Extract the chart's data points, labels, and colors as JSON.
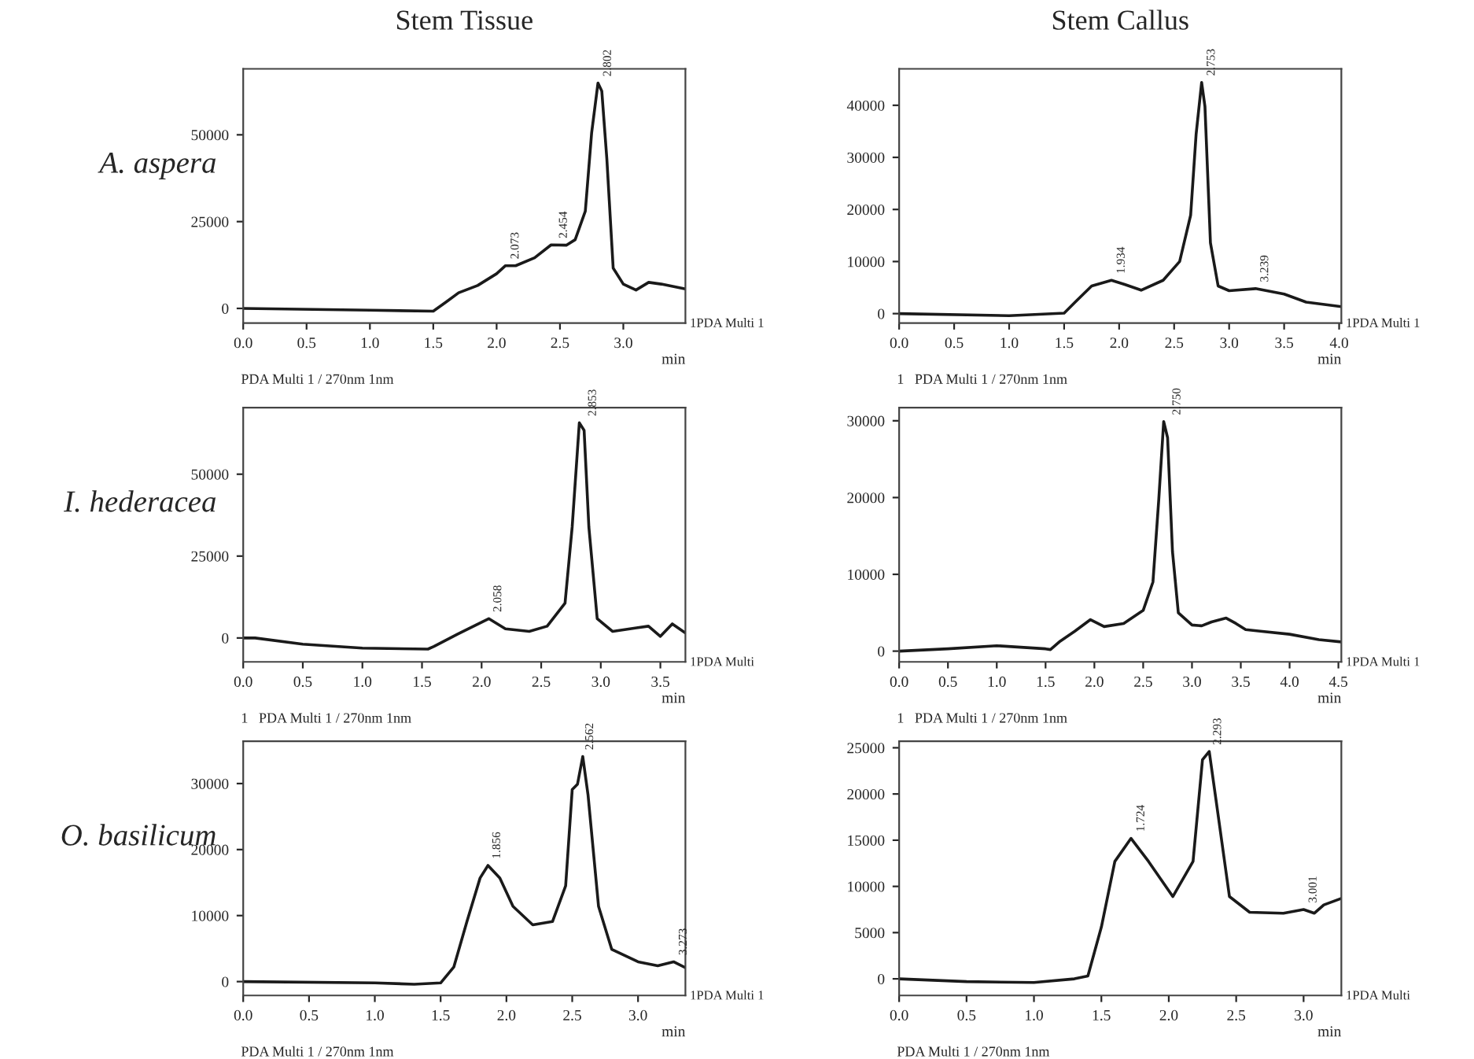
{
  "chart_data": [
    {
      "type": "line",
      "title": "Stem Tissue",
      "ylabel": "A. aspera",
      "xlabel": "min",
      "xlim": [
        0,
        3.49
      ],
      "ylim": [
        -4200,
        69000
      ],
      "xticks": [
        {
          "value": 0,
          "label": "0.0"
        },
        0.5,
        {
          "value": 1,
          "label": "1.0"
        },
        1.5,
        {
          "value": 2,
          "label": "2.0"
        },
        2.5,
        {
          "value": 3,
          "label": "3.0"
        }
      ],
      "yticks": [
        0,
        25000,
        50000
      ],
      "grid": false,
      "legend": false,
      "marker": "none",
      "line_style": "solid",
      "x": [
        0,
        1.0,
        1.5,
        1.6,
        1.7,
        1.85,
        2.0,
        2.07,
        2.15,
        2.3,
        2.43,
        2.55,
        2.62,
        2.7,
        2.75,
        2.8,
        2.83,
        2.87,
        2.92,
        3.0,
        3.1,
        3.2,
        3.3,
        3.49
      ],
      "series": [
        {
          "color": "#1a1a1a",
          "values": [
            0,
            -500,
            -800,
            1800,
            4500,
            6600,
            10000,
            12300,
            12300,
            14600,
            18300,
            18200,
            19800,
            28000,
            50600,
            64900,
            62600,
            43000,
            11600,
            7000,
            5300,
            7500,
            7000,
            5600
          ]
        }
      ],
      "annotations": [
        "1PDA Multi 1",
        "PDA Multi 1 / 270nm 1nm",
        {
          "text": "2.073",
          "x": 2.073,
          "y": 12300
        },
        {
          "text": "2.454",
          "x": 2.454,
          "y": 18300
        },
        {
          "text": "2.802",
          "x": 2.802,
          "y": 64900
        }
      ]
    },
    {
      "type": "line",
      "title": "Stem Callus",
      "xlabel": "min",
      "xlim": [
        0,
        4.02
      ],
      "ylim": [
        -1800,
        47000
      ],
      "xticks": [
        {
          "value": 0,
          "label": "0.0"
        },
        0.5,
        {
          "value": 1,
          "label": "1.0"
        },
        1.5,
        {
          "value": 2,
          "label": "2.0"
        },
        2.5,
        {
          "value": 3,
          "label": "3.0"
        },
        3.5,
        {
          "value": 4,
          "label": "4.0"
        }
      ],
      "yticks": [
        0,
        10000,
        20000,
        30000,
        40000
      ],
      "grid": false,
      "legend": false,
      "marker": "none",
      "line_style": "solid",
      "x": [
        0,
        1.0,
        1.5,
        1.6,
        1.75,
        1.93,
        2.05,
        2.2,
        2.4,
        2.55,
        2.65,
        2.7,
        2.75,
        2.78,
        2.83,
        2.9,
        3.0,
        3.24,
        3.5,
        3.7,
        4.02
      ],
      "series": [
        {
          "color": "#1a1a1a",
          "values": [
            0,
            -400,
            100,
            2200,
            5300,
            6400,
            5600,
            4500,
            6400,
            10000,
            18900,
            34500,
            44400,
            39800,
            13600,
            5300,
            4400,
            4800,
            3750,
            2200,
            1350
          ]
        }
      ],
      "annotations": [
        "1PDA Multi 1",
        "1   PDA Multi 1 / 270nm 1nm",
        {
          "text": "1.934",
          "x": 1.934,
          "y": 6400
        },
        {
          "text": "2.753",
          "x": 2.753,
          "y": 44400
        },
        {
          "text": "3.239",
          "x": 3.239,
          "y": 4800
        }
      ]
    },
    {
      "type": "line",
      "ylabel": "I. hederacea",
      "xlabel": "min",
      "xlim": [
        0,
        3.71
      ],
      "ylim": [
        -7300,
        70300
      ],
      "xticks": [
        {
          "value": 0,
          "label": "0.0"
        },
        0.5,
        {
          "value": 1,
          "label": "1.0"
        },
        1.5,
        {
          "value": 2,
          "label": "2.0"
        },
        2.5,
        {
          "value": 3,
          "label": "3.0"
        },
        3.5
      ],
      "yticks": [
        0,
        25000,
        50000
      ],
      "grid": false,
      "legend": false,
      "marker": "none",
      "line_style": "solid",
      "x": [
        0,
        0.1,
        0.5,
        1.0,
        1.55,
        1.6,
        1.8,
        2.06,
        2.2,
        2.4,
        2.55,
        2.7,
        2.76,
        2.82,
        2.86,
        2.9,
        2.97,
        3.1,
        3.3,
        3.4,
        3.5,
        3.6,
        3.71
      ],
      "series": [
        {
          "color": "#1a1a1a",
          "values": [
            0,
            0,
            -1900,
            -3100,
            -3400,
            -2600,
            1200,
            5900,
            2800,
            2000,
            3600,
            10600,
            33900,
            65700,
            63400,
            33900,
            5900,
            2000,
            3100,
            3600,
            500,
            4300,
            1500
          ]
        }
      ],
      "annotations": [
        "1PDA Multi",
        "1   PDA Multi 1 / 270nm 1nm",
        {
          "text": "2.058",
          "x": 2.058,
          "y": 5900
        },
        {
          "text": "2.853",
          "x": 2.853,
          "y": 65700
        }
      ]
    },
    {
      "type": "line",
      "xlabel": "min",
      "xlim": [
        0,
        4.53
      ],
      "ylim": [
        -1400,
        31700
      ],
      "xticks": [
        {
          "value": 0,
          "label": "0.0"
        },
        0.5,
        {
          "value": 1,
          "label": "1.0"
        },
        1.5,
        {
          "value": 2,
          "label": "2.0"
        },
        2.5,
        {
          "value": 3,
          "label": "3.0"
        },
        3.5,
        {
          "value": 4,
          "label": "4.0"
        },
        4.5
      ],
      "yticks": [
        0,
        10000,
        20000,
        30000
      ],
      "grid": false,
      "legend": false,
      "marker": "none",
      "line_style": "solid",
      "x": [
        0,
        0.5,
        1.0,
        1.5,
        1.55,
        1.65,
        1.8,
        1.96,
        2.1,
        2.3,
        2.5,
        2.6,
        2.66,
        2.71,
        2.75,
        2.8,
        2.86,
        3.0,
        3.1,
        3.2,
        3.35,
        3.45,
        3.55,
        3.7,
        4.0,
        4.3,
        4.53
      ],
      "series": [
        {
          "color": "#1a1a1a",
          "values": [
            0,
            300,
            700,
            300,
            200,
            1300,
            2600,
            4100,
            3200,
            3600,
            5300,
            9000,
            19800,
            29900,
            27800,
            13000,
            5000,
            3400,
            3300,
            3800,
            4300,
            3600,
            2800,
            2600,
            2200,
            1500,
            1200
          ]
        }
      ],
      "annotations": [
        "1PDA Multi 1",
        "1   PDA Multi 1 / 270nm 1nm",
        {
          "text": "2.750",
          "x": 2.75,
          "y": 29900
        }
      ]
    },
    {
      "type": "line",
      "ylabel": "O. basilicum",
      "xlabel": "min",
      "xlim": [
        0,
        3.36
      ],
      "ylim": [
        -2100,
        36400
      ],
      "xticks": [
        {
          "value": 0,
          "label": "0.0"
        },
        0.5,
        {
          "value": 1,
          "label": "1.0"
        },
        1.5,
        {
          "value": 2,
          "label": "2.0"
        },
        2.5,
        {
          "value": 3,
          "label": "3.0"
        }
      ],
      "yticks": [
        0,
        10000,
        20000,
        30000
      ],
      "grid": false,
      "legend": false,
      "marker": "none",
      "line_style": "solid",
      "x": [
        0,
        1.0,
        1.3,
        1.5,
        1.6,
        1.7,
        1.8,
        1.86,
        1.95,
        2.05,
        2.2,
        2.35,
        2.45,
        2.5,
        2.54,
        2.58,
        2.62,
        2.7,
        2.8,
        3.0,
        3.15,
        3.27,
        3.36
      ],
      "series": [
        {
          "color": "#1a1a1a",
          "values": [
            0,
            -200,
            -400,
            -200,
            2200,
            9100,
            15700,
            17600,
            15700,
            11400,
            8600,
            9100,
            14500,
            29100,
            29900,
            34100,
            28300,
            11400,
            4900,
            3000,
            2400,
            3000,
            2100
          ]
        }
      ],
      "annotations": [
        "1PDA Multi 1",
        "PDA Multi 1 / 270nm 1nm",
        {
          "text": "1.856",
          "x": 1.856,
          "y": 17600
        },
        {
          "text": "2.562",
          "x": 2.562,
          "y": 34100
        },
        {
          "text": "3.273",
          "x": 3.273,
          "y": 3000
        }
      ]
    },
    {
      "type": "line",
      "xlabel": "min",
      "xlim": [
        0,
        3.28
      ],
      "ylim": [
        -1800,
        25700
      ],
      "xticks": [
        {
          "value": 0,
          "label": "0.0"
        },
        0.5,
        {
          "value": 1,
          "label": "1.0"
        },
        1.5,
        {
          "value": 2,
          "label": "2.0"
        },
        2.5,
        {
          "value": 3,
          "label": "3.0"
        }
      ],
      "yticks": [
        0,
        5000,
        10000,
        15000,
        20000,
        25000
      ],
      "grid": false,
      "legend": false,
      "marker": "none",
      "line_style": "solid",
      "x": [
        0,
        0.5,
        1.0,
        1.3,
        1.4,
        1.5,
        1.6,
        1.72,
        1.85,
        2.03,
        2.18,
        2.25,
        2.3,
        2.35,
        2.45,
        2.6,
        2.85,
        3.0,
        3.08,
        3.15,
        3.28
      ],
      "series": [
        {
          "color": "#1a1a1a",
          "values": [
            0,
            -300,
            -400,
            0,
            300,
            5600,
            12700,
            15200,
            12700,
            8900,
            12700,
            23700,
            24600,
            19400,
            8900,
            7200,
            7100,
            7500,
            7100,
            8000,
            8700
          ]
        }
      ],
      "annotations": [
        "1PDA Multi",
        "PDA Multi 1 / 270nm 1nm",
        {
          "text": "1.724",
          "x": 1.724,
          "y": 15200
        },
        {
          "text": "2.293",
          "x": 2.293,
          "y": 24600
        },
        {
          "text": "3.001",
          "x": 3.001,
          "y": 7500
        }
      ]
    }
  ]
}
